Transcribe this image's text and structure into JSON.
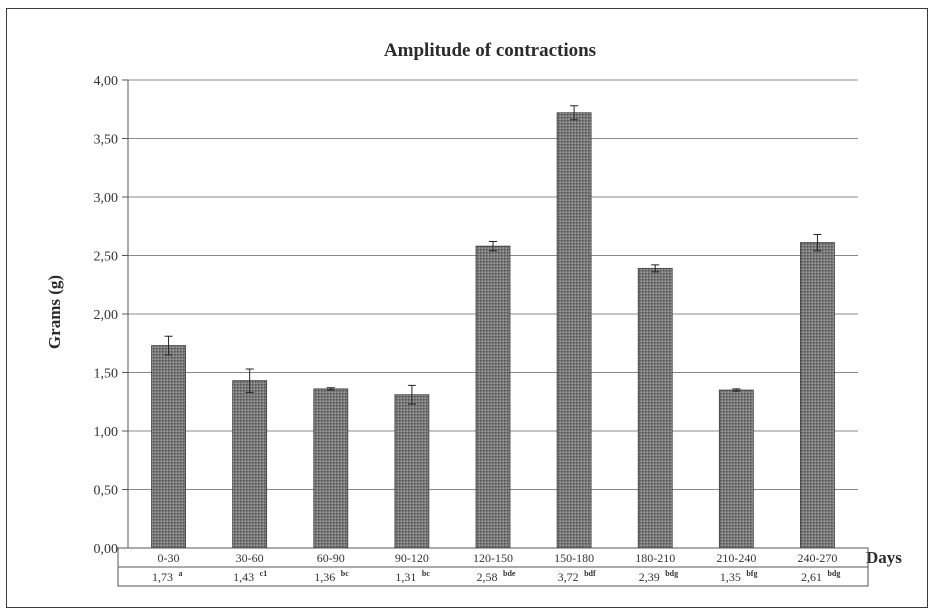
{
  "chart_data": {
    "type": "bar",
    "title": "Amplitude of contractions",
    "xlabel": "Days",
    "ylabel": "Grams (g)",
    "ylim": [
      0,
      4
    ],
    "yticks": [
      "0,00",
      "0,50",
      "1,00",
      "1,50",
      "2,00",
      "2,50",
      "3,00",
      "3,50",
      "4,00"
    ],
    "grid": true,
    "categories": [
      "0-30",
      "30-60",
      "60-90",
      "90-120",
      "120-150",
      "150-180",
      "180-210",
      "210-240",
      "240-270"
    ],
    "values": [
      1.73,
      1.43,
      1.36,
      1.31,
      2.58,
      3.72,
      2.39,
      1.35,
      2.61
    ],
    "errors": [
      0.08,
      0.1,
      0.01,
      0.08,
      0.04,
      0.06,
      0.03,
      0.01,
      0.07
    ],
    "value_labels": [
      "1,73",
      "1,43",
      "1,36",
      "1,31",
      "2,58",
      "3,72",
      "2,39",
      "1,35",
      "2,61"
    ],
    "significance": [
      "a",
      "c1",
      "bc",
      "bc",
      "bde",
      "bdf",
      "bdg",
      "bfg",
      "bdg"
    ],
    "bar_color": "#6b6b6b"
  }
}
